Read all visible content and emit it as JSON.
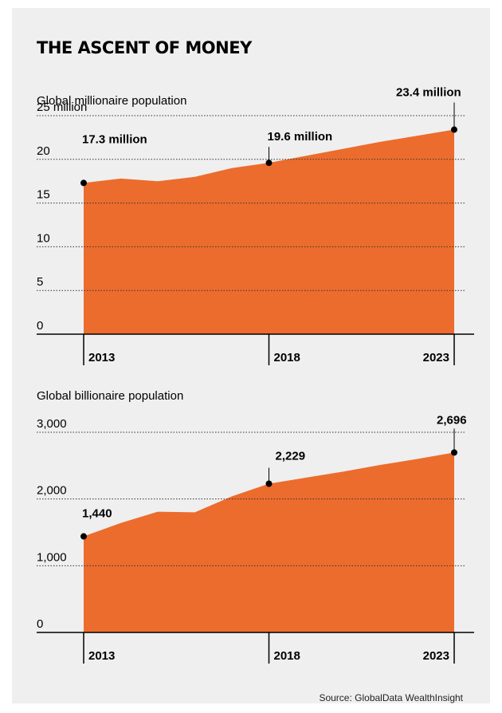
{
  "title": "THE ASCENT OF MONEY",
  "source": "Source: GlobalData WealthInsight",
  "colors": {
    "area": "#ec6c2d",
    "background": "#efefef",
    "text": "#000000"
  },
  "chart_data": [
    {
      "type": "area",
      "title": "Global millionaire population",
      "x": [
        2013,
        2014,
        2015,
        2016,
        2017,
        2018,
        2019,
        2020,
        2021,
        2022,
        2023
      ],
      "values": [
        17.3,
        17.8,
        17.5,
        18.0,
        19.0,
        19.6,
        20.4,
        21.2,
        22.0,
        22.7,
        23.4
      ],
      "ylim": [
        0,
        25
      ],
      "yticks": [
        0,
        5,
        10,
        15,
        20,
        25
      ],
      "ytick_labels": [
        "0",
        "5",
        "10",
        "15",
        "20",
        "25 million"
      ],
      "xtick_labels": [
        "2013",
        "2018",
        "2023"
      ],
      "annotations": [
        {
          "year": 2013,
          "value": 17.3,
          "label": "17.3 million"
        },
        {
          "year": 2018,
          "value": 19.6,
          "label": "19.6 million"
        },
        {
          "year": 2023,
          "value": 23.4,
          "label": "23.4 million"
        }
      ],
      "grid": true
    },
    {
      "type": "area",
      "title": "Global billionaire population",
      "x": [
        2013,
        2014,
        2015,
        2016,
        2017,
        2018,
        2019,
        2020,
        2021,
        2022,
        2023
      ],
      "values": [
        1440,
        1640,
        1810,
        1800,
        2040,
        2229,
        2320,
        2410,
        2510,
        2600,
        2696
      ],
      "ylim": [
        0,
        3000
      ],
      "yticks": [
        0,
        1000,
        2000,
        3000
      ],
      "ytick_labels": [
        "0",
        "1,000",
        "2,000",
        "3,000"
      ],
      "xtick_labels": [
        "2013",
        "2018",
        "2023"
      ],
      "annotations": [
        {
          "year": 2013,
          "value": 1440,
          "label": "1,440"
        },
        {
          "year": 2018,
          "value": 2229,
          "label": "2,229"
        },
        {
          "year": 2023,
          "value": 2696,
          "label": "2,696"
        }
      ],
      "grid": true
    }
  ]
}
